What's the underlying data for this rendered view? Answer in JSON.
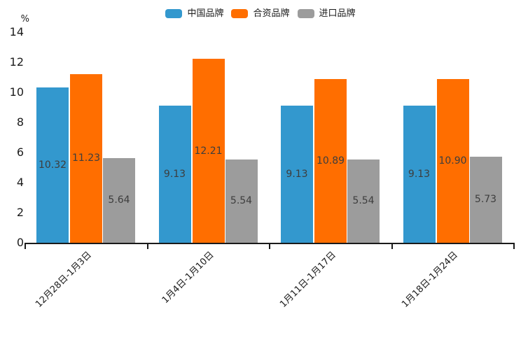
{
  "chart_data": {
    "type": "bar",
    "title": "",
    "unit_label": "%",
    "categories": [
      "12月28日-1月3日",
      "1月4日-1月10日",
      "1月11日-1月17日",
      "1月18日-1月24日"
    ],
    "series": [
      {
        "name": "中国品牌",
        "color": "#3398CE",
        "values": [
          10.32,
          9.13,
          9.13,
          9.13
        ],
        "labels": [
          "10.32",
          "9.13",
          "9.13",
          "9.13"
        ]
      },
      {
        "name": "合资品牌",
        "color": "#FF6E00",
        "values": [
          11.23,
          12.21,
          10.89,
          10.9
        ],
        "labels": [
          "11.23",
          "12.21",
          "10.89",
          "10.90"
        ]
      },
      {
        "name": "进口品牌",
        "color": "#9C9C9C",
        "values": [
          5.64,
          5.54,
          5.54,
          5.73
        ],
        "labels": [
          "5.64",
          "5.54",
          "5.54",
          "5.73"
        ]
      }
    ],
    "yticks": [
      0,
      2,
      4,
      6,
      8,
      10,
      12,
      14
    ],
    "ylim": [
      0,
      14
    ],
    "grid": false,
    "legend_position": "top",
    "value_labels_shown": true
  },
  "colors": {
    "axis": "#1a1a1a",
    "tick_text": "#1c1c1c",
    "value_label_text": "#3d3d3d",
    "background": "#ffffff"
  }
}
